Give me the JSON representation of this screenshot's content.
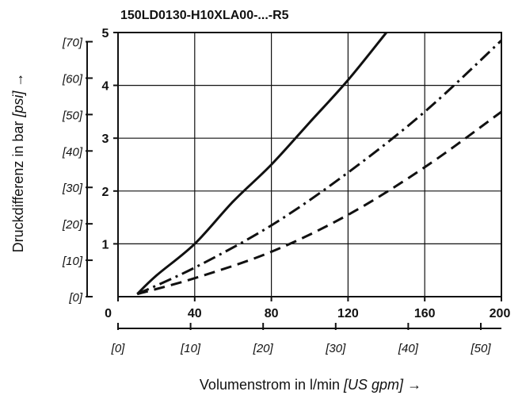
{
  "chart_data": {
    "type": "line",
    "title": "150LD0130-H10XLA00-...-R5",
    "xlabel": "Volumenstrom in l/min",
    "xlabel_unit": "[US gpm]",
    "xlabel_arrow": "→",
    "ylabel": "Druckdifferenz in bar",
    "ylabel_unit": "[psi]",
    "ylabel_arrow": "→",
    "xlim": [
      0,
      200
    ],
    "ylim": [
      0,
      5
    ],
    "x_ticks": [
      0,
      40,
      80,
      120,
      160,
      200
    ],
    "x_tick_labels": [
      "0",
      "40",
      "80",
      "120",
      "160",
      "200"
    ],
    "y_ticks": [
      1,
      2,
      3,
      4,
      5
    ],
    "y_tick_labels": [
      "1",
      "2",
      "3",
      "4",
      "5"
    ],
    "x2_unit_factor": 3.785,
    "x2_ticks": [
      0,
      10,
      20,
      30,
      40,
      50
    ],
    "x2_tick_labels": [
      "[0]",
      "[10]",
      "[20]",
      "[30]",
      "[40]",
      "[50]"
    ],
    "y2_unit_factor": 0.06895,
    "y2_ticks": [
      0,
      10,
      20,
      30,
      40,
      50,
      60,
      70
    ],
    "y2_tick_labels": [
      "[0]",
      "[10]",
      "[20]",
      "[30]",
      "[40]",
      "[50]",
      "[60]",
      "[70]"
    ],
    "grid": true,
    "series": [
      {
        "style": "solid",
        "x": [
          10,
          20,
          40,
          60,
          80,
          100,
          120,
          140
        ],
        "y": [
          0.05,
          0.4,
          1.0,
          1.8,
          2.5,
          3.3,
          4.1,
          5.0
        ]
      },
      {
        "style": "dashdot",
        "x": [
          10,
          40,
          80,
          120,
          160,
          200
        ],
        "y": [
          0.05,
          0.55,
          1.35,
          2.35,
          3.5,
          4.85
        ]
      },
      {
        "style": "dashed",
        "x": [
          10,
          40,
          80,
          120,
          160,
          200
        ],
        "y": [
          0.05,
          0.35,
          0.85,
          1.55,
          2.45,
          3.5
        ]
      }
    ]
  }
}
